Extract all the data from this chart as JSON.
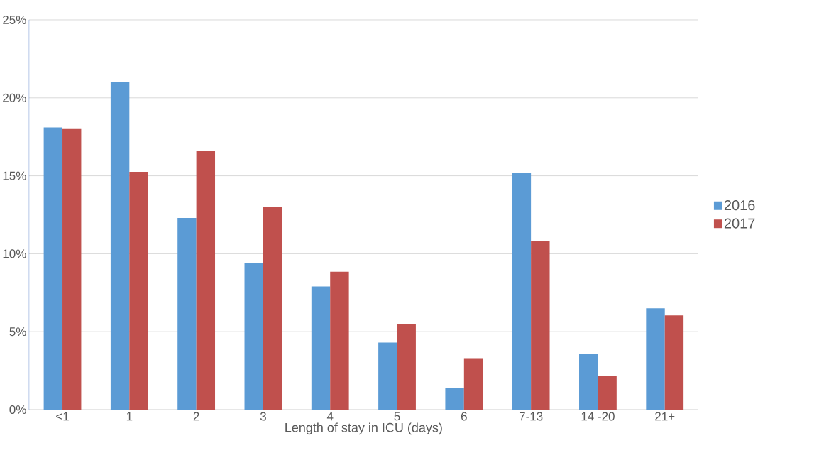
{
  "chart_data": {
    "type": "bar",
    "xlabel": "Length of stay in ICU (days)",
    "categories": [
      "<1",
      "1",
      "2",
      "3",
      "4",
      "5",
      "6",
      "7-13",
      "14 -20",
      "21+"
    ],
    "series": [
      {
        "name": "2016",
        "color": "#5b9bd5",
        "values": [
          18.1,
          21.0,
          12.3,
          9.4,
          7.9,
          4.3,
          1.4,
          15.2,
          3.55,
          6.5
        ]
      },
      {
        "name": "2017",
        "color": "#c0504d",
        "values": [
          18.0,
          15.25,
          16.6,
          13.0,
          8.85,
          5.5,
          3.3,
          10.8,
          2.15,
          6.05
        ]
      }
    ],
    "ylim": [
      0,
      25
    ],
    "yticks": [
      {
        "value": 0,
        "label": "0%"
      },
      {
        "value": 5,
        "label": "5%"
      },
      {
        "value": 10,
        "label": "10%"
      },
      {
        "value": 15,
        "label": "15%"
      },
      {
        "value": 20,
        "label": "20%"
      },
      {
        "value": 25,
        "label": "25%"
      }
    ],
    "grid": "y",
    "legend": "right"
  }
}
